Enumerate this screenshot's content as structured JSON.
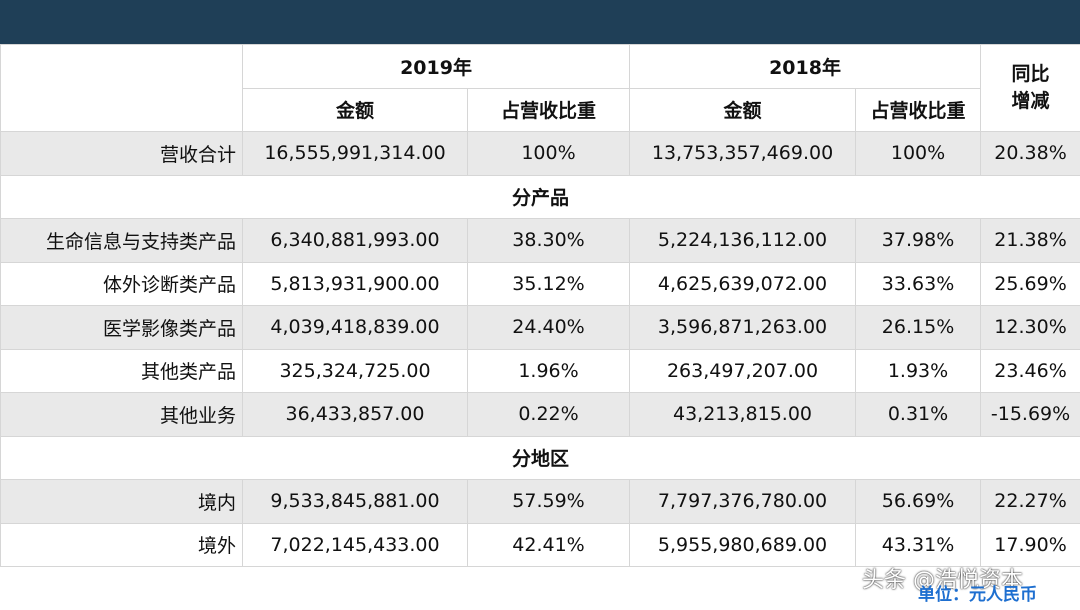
{
  "table": {
    "header": {
      "years": [
        "2019年",
        "2018年"
      ],
      "change": "同比增减",
      "subcolumns": [
        "金额",
        "占营收比重",
        "金额",
        "占营收比重"
      ]
    },
    "rows": [
      [
        "营收合计",
        "16,555,991,314.00",
        "100%",
        "13,753,357,469.00",
        "100%",
        "20.38%"
      ],
      [
        "分产品"
      ],
      [
        "生命信息与支持类产品",
        "6,340,881,993.00",
        "38.30%",
        "5,224,136,112.00",
        "37.98%",
        "21.38%"
      ],
      [
        "体外诊断类产品",
        "5,813,931,900.00",
        "35.12%",
        "4,625,639,072.00",
        "33.63%",
        "25.69%"
      ],
      [
        "医学影像类产品",
        "4,039,418,839.00",
        "24.40%",
        "3,596,871,263.00",
        "26.15%",
        "12.30%"
      ],
      [
        "其他类产品",
        "325,324,725.00",
        "1.96%",
        "263,497,207.00",
        "1.93%",
        "23.46%"
      ],
      [
        "其他业务",
        "36,433,857.00",
        "0.22%",
        "43,213,815.00",
        "0.31%",
        "-15.69%"
      ],
      [
        "分地区"
      ],
      [
        "境内",
        "9,533,845,881.00",
        "57.59%",
        "7,797,376,780.00",
        "56.69%",
        "22.27%"
      ],
      [
        "境外",
        "7,022,145,433.00",
        "42.41%",
        "5,955,980,689.00",
        "43.31%",
        "17.90%"
      ]
    ]
  },
  "footer": {
    "watermark": "头条 @浩悦资本",
    "note": "单位：元人民币"
  }
}
